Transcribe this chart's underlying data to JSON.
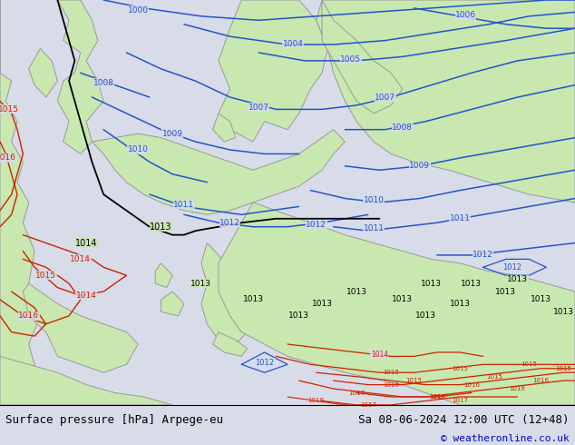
{
  "title_left": "Surface pressure [hPa] Arpege-eu",
  "title_right": "Sa 08-06-2024 12:00 UTC (12+48)",
  "copyright": "© weatheronline.co.uk",
  "sea_color": "#d8dce8",
  "land_color": "#c8e8b0",
  "figure_width": 6.34,
  "figure_height": 4.9,
  "dpi": 100,
  "bottom_bar_color": "#d8dce8",
  "bottom_text_color": "#000000",
  "copyright_color": "#0000cc",
  "isobar_blue": "#2255cc",
  "isobar_red": "#cc2200",
  "isobar_black": "#000000",
  "coast_color": "#999999",
  "border_color": "#000000"
}
